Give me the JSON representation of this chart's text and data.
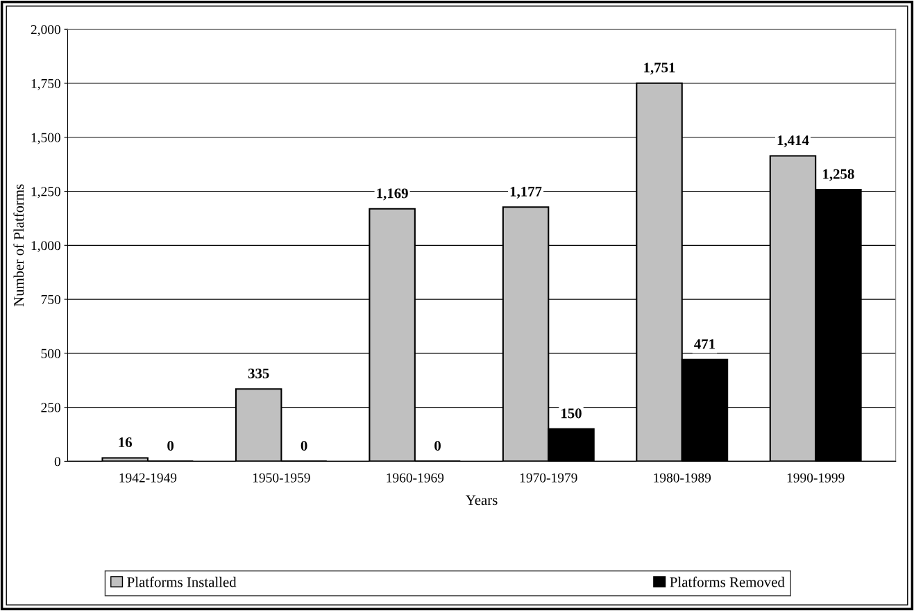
{
  "chart_data": {
    "type": "bar",
    "xlabel": "Years",
    "ylabel": "Number of Platforms",
    "categories": [
      "1942-1949",
      "1950-1959",
      "1960-1969",
      "1970-1979",
      "1980-1989",
      "1990-1999"
    ],
    "series": [
      {
        "name": "Platforms Installed",
        "color": "#c0c0c0",
        "values": [
          16,
          335,
          1169,
          1177,
          1751,
          1414
        ],
        "value_labels": [
          "16",
          "335",
          "1,169",
          "1,177",
          "1,751",
          "1,414"
        ]
      },
      {
        "name": "Platforms Removed",
        "color": "#000000",
        "values": [
          0,
          0,
          0,
          150,
          471,
          1258
        ],
        "value_labels": [
          "0",
          "0",
          "0",
          "150",
          "471",
          "1,258"
        ]
      }
    ],
    "ylim": [
      0,
      2000
    ],
    "yticks": [
      0,
      250,
      500,
      750,
      {
        "value": 1000,
        "label": "1,000"
      },
      {
        "value": 1250,
        "label": "1,250"
      },
      {
        "value": 1500,
        "label": "1,500"
      },
      {
        "value": 1750,
        "label": "1,750"
      },
      {
        "value": 2000,
        "label": "2,000"
      }
    ],
    "grid": "y",
    "legend": "bottom"
  }
}
